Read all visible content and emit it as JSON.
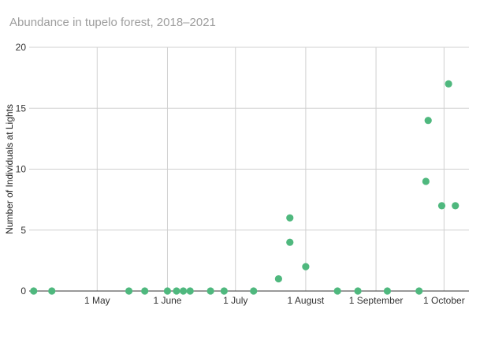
{
  "chart_data": {
    "type": "scatter",
    "title": "Abundance in tupelo forest, 2018–2021",
    "xlabel": "",
    "ylabel": "Number of Individuals at Lights",
    "x_type": "date",
    "xlim": [
      "2021-04-01",
      "2021-10-12"
    ],
    "ylim": [
      0,
      20
    ],
    "y_ticks": [
      0,
      5,
      10,
      15,
      20
    ],
    "x_ticks": [
      {
        "value": "2021-05-01",
        "label": "1 May"
      },
      {
        "value": "2021-06-01",
        "label": "1 June"
      },
      {
        "value": "2021-07-01",
        "label": "1 July"
      },
      {
        "value": "2021-08-01",
        "label": "1 August"
      },
      {
        "value": "2021-09-01",
        "label": "1 September"
      },
      {
        "value": "2021-10-01",
        "label": "1 October"
      }
    ],
    "grid": true,
    "legend": "none",
    "color": "#4fb87e",
    "points": [
      {
        "x": "2021-04-03",
        "y": 0
      },
      {
        "x": "2021-04-11",
        "y": 0
      },
      {
        "x": "2021-05-15",
        "y": 0
      },
      {
        "x": "2021-05-22",
        "y": 0
      },
      {
        "x": "2021-06-01",
        "y": 0
      },
      {
        "x": "2021-06-05",
        "y": 0
      },
      {
        "x": "2021-06-08",
        "y": 0
      },
      {
        "x": "2021-06-11",
        "y": 0
      },
      {
        "x": "2021-06-20",
        "y": 0
      },
      {
        "x": "2021-06-26",
        "y": 0
      },
      {
        "x": "2021-07-09",
        "y": 0
      },
      {
        "x": "2021-07-20",
        "y": 1
      },
      {
        "x": "2021-07-25",
        "y": 4
      },
      {
        "x": "2021-07-25",
        "y": 6
      },
      {
        "x": "2021-08-01",
        "y": 2
      },
      {
        "x": "2021-08-15",
        "y": 0
      },
      {
        "x": "2021-08-24",
        "y": 0
      },
      {
        "x": "2021-09-06",
        "y": 0
      },
      {
        "x": "2021-09-20",
        "y": 0
      },
      {
        "x": "2021-09-23",
        "y": 9
      },
      {
        "x": "2021-09-24",
        "y": 14
      },
      {
        "x": "2021-09-30",
        "y": 7
      },
      {
        "x": "2021-10-03",
        "y": 17
      },
      {
        "x": "2021-10-06",
        "y": 7
      }
    ]
  }
}
